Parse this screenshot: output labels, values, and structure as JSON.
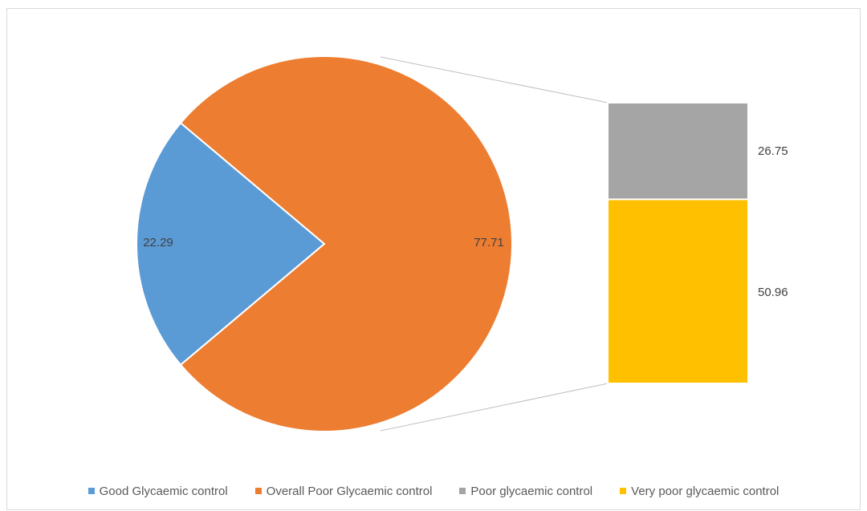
{
  "chart_data": {
    "type": "bar-of-pie",
    "pie": {
      "slices": [
        {
          "name": "Good Glycaemic control",
          "value": 22.29,
          "color": "#5b9bd5"
        },
        {
          "name": "Overall Poor Glycaemic control",
          "value": 77.71,
          "color": "#ed7d31"
        }
      ]
    },
    "bar": {
      "segments": [
        {
          "name": "Poor glycaemic control",
          "value": 26.75,
          "color": "#a5a5a5"
        },
        {
          "name": "Very poor glycaemic control",
          "value": 50.96,
          "color": "#ffc000"
        }
      ]
    },
    "data_labels": {
      "good": "22.29",
      "overall_poor": "77.71",
      "poor": "26.75",
      "very_poor": "50.96"
    },
    "legend": {
      "position": "bottom",
      "items": [
        {
          "label": "Good Glycaemic control",
          "color": "#5b9bd5"
        },
        {
          "label": "Overall Poor Glycaemic control",
          "color": "#ed7d31"
        },
        {
          "label": "Poor glycaemic control",
          "color": "#a5a5a5"
        },
        {
          "label": "Very poor glycaemic control",
          "color": "#ffc000"
        }
      ]
    },
    "title": ""
  }
}
